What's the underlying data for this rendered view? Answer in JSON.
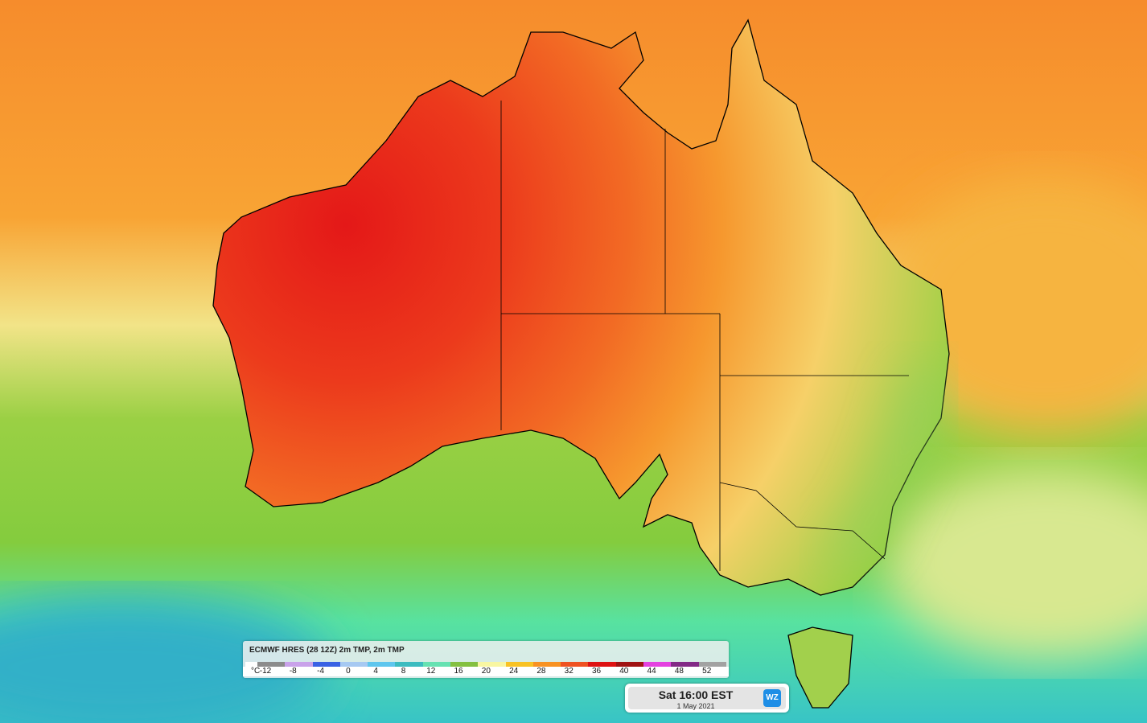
{
  "legend": {
    "title": "ECMWF HRES (28 12Z) 2m TMP, 2m TMP",
    "unit": "°C",
    "labels": [
      -12,
      -8,
      -4,
      0,
      4,
      8,
      12,
      16,
      20,
      24,
      28,
      32,
      36,
      40,
      44,
      48,
      52
    ],
    "colors": [
      "#ffffff",
      "#8c8c8c",
      "#c9a2ea",
      "#3a62e4",
      "#a6c9f2",
      "#5ec6ee",
      "#3cbcc0",
      "#66e2b2",
      "#84c040",
      "#f8f6a2",
      "#f8c224",
      "#f89222",
      "#ef5222",
      "#de1212",
      "#a01212",
      "#e442e0",
      "#832a86",
      "#a2a2a2"
    ]
  },
  "time_box": {
    "time": "Sat 16:00 EST",
    "date": "1 May 2021",
    "logo": "WZ"
  }
}
